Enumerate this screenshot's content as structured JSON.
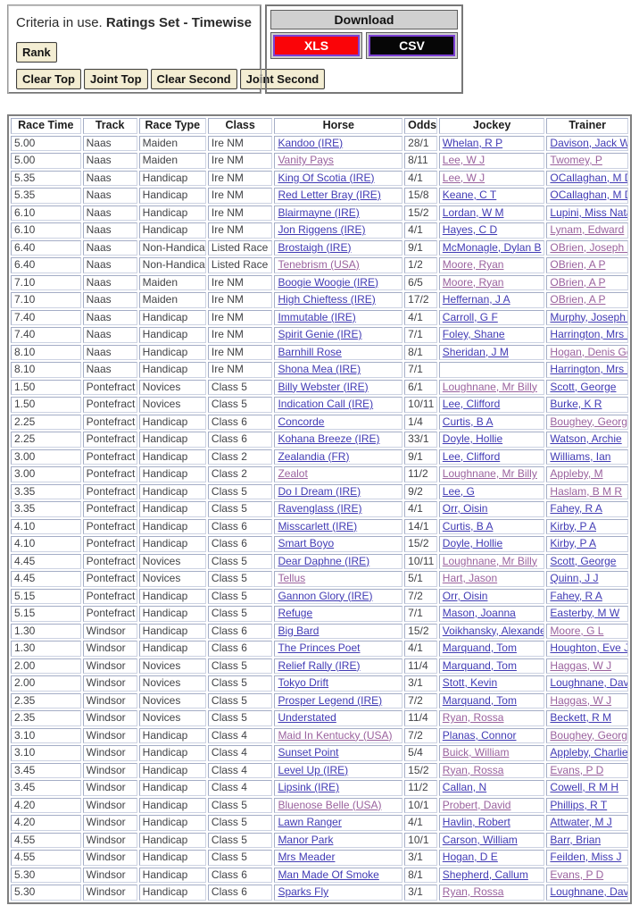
{
  "colors": {
    "link_blue": "#403ab4",
    "link_visited": "#9a629e",
    "xls_red": "#fa0408",
    "csv_black": "#060606",
    "download_button_border": "#7c3fd4",
    "criteria_button_bg": "#f3edd3",
    "download_header_bg": "#d0d0d0"
  },
  "criteria_panel": {
    "prefix": "Criteria in use. ",
    "highlight": "Ratings Set - Timewise",
    "rank_button": "Rank",
    "action_buttons": [
      "Clear Top",
      "Joint Top",
      "Clear Second",
      "Joint Second"
    ]
  },
  "download_panel": {
    "title": "Download",
    "xls_button": "XLS",
    "csv_button": "CSV"
  },
  "race_table": {
    "headers": [
      "Race Time",
      "Track",
      "Race Type",
      "Class",
      "Horse",
      "Odds",
      "Jockey",
      "Trainer"
    ],
    "rows": [
      {
        "time": "5.00",
        "track": "Naas",
        "race_type": "Maiden",
        "race_class": "Ire NM",
        "horse": "Kandoo (IRE)",
        "odds": "28/1",
        "jockey": "Whelan, R P",
        "trainer": "Davison, Jack W",
        "horse_visited": false,
        "jockey_visited": false,
        "trainer_visited": false
      },
      {
        "time": "5.00",
        "track": "Naas",
        "race_type": "Maiden",
        "race_class": "Ire NM",
        "horse": "Vanity Pays",
        "odds": "8/11",
        "jockey": "Lee, W J",
        "trainer": "Twomey, P",
        "horse_visited": true,
        "jockey_visited": true,
        "trainer_visited": true
      },
      {
        "time": "5.35",
        "track": "Naas",
        "race_type": "Handicap",
        "race_class": "Ire NM",
        "horse": "King Of Scotia (IRE)",
        "odds": "4/1",
        "jockey": "Lee, W J",
        "trainer": "OCallaghan, M D",
        "horse_visited": false,
        "jockey_visited": true,
        "trainer_visited": false
      },
      {
        "time": "5.35",
        "track": "Naas",
        "race_type": "Handicap",
        "race_class": "Ire NM",
        "horse": "Red Letter Bray (IRE)",
        "odds": "15/8",
        "jockey": "Keane, C T",
        "trainer": "OCallaghan, M D",
        "horse_visited": false,
        "jockey_visited": false,
        "trainer_visited": false
      },
      {
        "time": "6.10",
        "track": "Naas",
        "race_type": "Handicap",
        "race_class": "Ire NM",
        "horse": "Blairmayne (IRE)",
        "odds": "15/2",
        "jockey": "Lordan, W M",
        "trainer": "Lupini, Miss Natalia",
        "horse_visited": false,
        "jockey_visited": false,
        "trainer_visited": false
      },
      {
        "time": "6.10",
        "track": "Naas",
        "race_type": "Handicap",
        "race_class": "Ire NM",
        "horse": "Jon Riggens (IRE)",
        "odds": "4/1",
        "jockey": "Hayes, C D",
        "trainer": "Lynam, Edward",
        "horse_visited": false,
        "jockey_visited": false,
        "trainer_visited": true
      },
      {
        "time": "6.40",
        "track": "Naas",
        "race_type": "Non-Handicap",
        "race_class": "Listed Race",
        "horse": "Brostaigh (IRE)",
        "odds": "9/1",
        "jockey": "McMonagle, Dylan B",
        "trainer": "OBrien, Joseph Patrick",
        "horse_visited": false,
        "jockey_visited": false,
        "trainer_visited": true
      },
      {
        "time": "6.40",
        "track": "Naas",
        "race_type": "Non-Handicap",
        "race_class": "Listed Race",
        "horse": "Tenebrism (USA)",
        "odds": "1/2",
        "jockey": "Moore, Ryan",
        "trainer": "OBrien, A P",
        "horse_visited": true,
        "jockey_visited": true,
        "trainer_visited": true
      },
      {
        "time": "7.10",
        "track": "Naas",
        "race_type": "Maiden",
        "race_class": "Ire NM",
        "horse": "Boogie Woogie (IRE)",
        "odds": "6/5",
        "jockey": "Moore, Ryan",
        "trainer": "OBrien, A P",
        "horse_visited": false,
        "jockey_visited": true,
        "trainer_visited": true
      },
      {
        "time": "7.10",
        "track": "Naas",
        "race_type": "Maiden",
        "race_class": "Ire NM",
        "horse": "High Chieftess (IRE)",
        "odds": "17/2",
        "jockey": "Heffernan, J A",
        "trainer": "OBrien, A P",
        "horse_visited": false,
        "jockey_visited": false,
        "trainer_visited": true
      },
      {
        "time": "7.40",
        "track": "Naas",
        "race_type": "Handicap",
        "race_class": "Ire NM",
        "horse": "Immutable (IRE)",
        "odds": "4/1",
        "jockey": "Carroll, G F",
        "trainer": "Murphy, Joseph G",
        "horse_visited": false,
        "jockey_visited": false,
        "trainer_visited": false
      },
      {
        "time": "7.40",
        "track": "Naas",
        "race_type": "Handicap",
        "race_class": "Ire NM",
        "horse": "Spirit Genie (IRE)",
        "odds": "7/1",
        "jockey": "Foley, Shane",
        "trainer": "Harrington, Mrs John",
        "horse_visited": false,
        "jockey_visited": false,
        "trainer_visited": false
      },
      {
        "time": "8.10",
        "track": "Naas",
        "race_type": "Handicap",
        "race_class": "Ire NM",
        "horse": "Barnhill Rose",
        "odds": "8/1",
        "jockey": "Sheridan, J M",
        "trainer": "Hogan, Denis Gerard",
        "horse_visited": false,
        "jockey_visited": false,
        "trainer_visited": true
      },
      {
        "time": "8.10",
        "track": "Naas",
        "race_type": "Handicap",
        "race_class": "Ire NM",
        "horse": "Shona Mea (IRE)",
        "odds": "7/1",
        "jockey": "",
        "trainer": "Harrington, Mrs John",
        "horse_visited": false,
        "jockey_visited": false,
        "trainer_visited": false
      },
      {
        "time": "1.50",
        "track": "Pontefract",
        "race_type": "Novices",
        "race_class": "Class 5",
        "horse": "Billy Webster (IRE)",
        "odds": "6/1",
        "jockey": "Loughnane, Mr Billy",
        "trainer": "Scott, George",
        "horse_visited": false,
        "jockey_visited": true,
        "trainer_visited": false
      },
      {
        "time": "1.50",
        "track": "Pontefract",
        "race_type": "Novices",
        "race_class": "Class 5",
        "horse": "Indication Call (IRE)",
        "odds": "10/11",
        "jockey": "Lee, Clifford",
        "trainer": "Burke, K R",
        "horse_visited": false,
        "jockey_visited": false,
        "trainer_visited": false
      },
      {
        "time": "2.25",
        "track": "Pontefract",
        "race_type": "Handicap",
        "race_class": "Class 6",
        "horse": "Concorde",
        "odds": "1/4",
        "jockey": "Curtis, B A",
        "trainer": "Boughey, George",
        "horse_visited": false,
        "jockey_visited": false,
        "trainer_visited": true
      },
      {
        "time": "2.25",
        "track": "Pontefract",
        "race_type": "Handicap",
        "race_class": "Class 6",
        "horse": "Kohana Breeze (IRE)",
        "odds": "33/1",
        "jockey": "Doyle, Hollie",
        "trainer": "Watson, Archie",
        "horse_visited": false,
        "jockey_visited": false,
        "trainer_visited": false
      },
      {
        "time": "3.00",
        "track": "Pontefract",
        "race_type": "Handicap",
        "race_class": "Class 2",
        "horse": "Zealandia (FR)",
        "odds": "9/1",
        "jockey": "Lee, Clifford",
        "trainer": "Williams, Ian",
        "horse_visited": false,
        "jockey_visited": false,
        "trainer_visited": false
      },
      {
        "time": "3.00",
        "track": "Pontefract",
        "race_type": "Handicap",
        "race_class": "Class 2",
        "horse": "Zealot",
        "odds": "11/2",
        "jockey": "Loughnane, Mr Billy",
        "trainer": "Appleby, M",
        "horse_visited": true,
        "jockey_visited": true,
        "trainer_visited": true
      },
      {
        "time": "3.35",
        "track": "Pontefract",
        "race_type": "Handicap",
        "race_class": "Class 5",
        "horse": "Do I Dream (IRE)",
        "odds": "9/2",
        "jockey": "Lee, G",
        "trainer": "Haslam, B M R",
        "horse_visited": false,
        "jockey_visited": false,
        "trainer_visited": true
      },
      {
        "time": "3.35",
        "track": "Pontefract",
        "race_type": "Handicap",
        "race_class": "Class 5",
        "horse": "Ravenglass (IRE)",
        "odds": "4/1",
        "jockey": "Orr, Oisin",
        "trainer": "Fahey, R A",
        "horse_visited": false,
        "jockey_visited": false,
        "trainer_visited": false
      },
      {
        "time": "4.10",
        "track": "Pontefract",
        "race_type": "Handicap",
        "race_class": "Class 6",
        "horse": "Misscarlett (IRE)",
        "odds": "14/1",
        "jockey": "Curtis, B A",
        "trainer": "Kirby, P A",
        "horse_visited": false,
        "jockey_visited": false,
        "trainer_visited": false
      },
      {
        "time": "4.10",
        "track": "Pontefract",
        "race_type": "Handicap",
        "race_class": "Class 6",
        "horse": "Smart Boyo",
        "odds": "15/2",
        "jockey": "Doyle, Hollie",
        "trainer": "Kirby, P A",
        "horse_visited": false,
        "jockey_visited": false,
        "trainer_visited": false
      },
      {
        "time": "4.45",
        "track": "Pontefract",
        "race_type": "Novices",
        "race_class": "Class 5",
        "horse": "Dear Daphne (IRE)",
        "odds": "10/11",
        "jockey": "Loughnane, Mr Billy",
        "trainer": "Scott, George",
        "horse_visited": false,
        "jockey_visited": true,
        "trainer_visited": false
      },
      {
        "time": "4.45",
        "track": "Pontefract",
        "race_type": "Novices",
        "race_class": "Class 5",
        "horse": "Tellus",
        "odds": "5/1",
        "jockey": "Hart, Jason",
        "trainer": "Quinn, J J",
        "horse_visited": true,
        "jockey_visited": true,
        "trainer_visited": false
      },
      {
        "time": "5.15",
        "track": "Pontefract",
        "race_type": "Handicap",
        "race_class": "Class 5",
        "horse": "Gannon Glory (IRE)",
        "odds": "7/2",
        "jockey": "Orr, Oisin",
        "trainer": "Fahey, R A",
        "horse_visited": false,
        "jockey_visited": false,
        "trainer_visited": false
      },
      {
        "time": "5.15",
        "track": "Pontefract",
        "race_type": "Handicap",
        "race_class": "Class 5",
        "horse": "Refuge",
        "odds": "7/1",
        "jockey": "Mason, Joanna",
        "trainer": "Easterby, M W",
        "horse_visited": false,
        "jockey_visited": false,
        "trainer_visited": false
      },
      {
        "time": "1.30",
        "track": "Windsor",
        "race_type": "Handicap",
        "race_class": "Class 6",
        "horse": "Big Bard",
        "odds": "15/2",
        "jockey": "Voikhansky, Alexander",
        "trainer": "Moore, G L",
        "horse_visited": false,
        "jockey_visited": false,
        "trainer_visited": true
      },
      {
        "time": "1.30",
        "track": "Windsor",
        "race_type": "Handicap",
        "race_class": "Class 6",
        "horse": "The Princes Poet",
        "odds": "4/1",
        "jockey": "Marquand, Tom",
        "trainer": "Houghton, Eve Johnson",
        "horse_visited": false,
        "jockey_visited": false,
        "trainer_visited": false
      },
      {
        "time": "2.00",
        "track": "Windsor",
        "race_type": "Novices",
        "race_class": "Class 5",
        "horse": "Relief Rally (IRE)",
        "odds": "11/4",
        "jockey": "Marquand, Tom",
        "trainer": "Haggas, W J",
        "horse_visited": false,
        "jockey_visited": false,
        "trainer_visited": true
      },
      {
        "time": "2.00",
        "track": "Windsor",
        "race_type": "Novices",
        "race_class": "Class 5",
        "horse": "Tokyo Drift",
        "odds": "3/1",
        "jockey": "Stott, Kevin",
        "trainer": "Loughnane, David",
        "horse_visited": false,
        "jockey_visited": false,
        "trainer_visited": false
      },
      {
        "time": "2.35",
        "track": "Windsor",
        "race_type": "Novices",
        "race_class": "Class 5",
        "horse": "Prosper Legend (IRE)",
        "odds": "7/2",
        "jockey": "Marquand, Tom",
        "trainer": "Haggas, W J",
        "horse_visited": false,
        "jockey_visited": false,
        "trainer_visited": true
      },
      {
        "time": "2.35",
        "track": "Windsor",
        "race_type": "Novices",
        "race_class": "Class 5",
        "horse": "Understated",
        "odds": "11/4",
        "jockey": "Ryan, Rossa",
        "trainer": "Beckett, R M",
        "horse_visited": false,
        "jockey_visited": true,
        "trainer_visited": false
      },
      {
        "time": "3.10",
        "track": "Windsor",
        "race_type": "Handicap",
        "race_class": "Class 4",
        "horse": "Maid In Kentucky (USA)",
        "odds": "7/2",
        "jockey": "Planas, Connor",
        "trainer": "Boughey, George",
        "horse_visited": true,
        "jockey_visited": false,
        "trainer_visited": true
      },
      {
        "time": "3.10",
        "track": "Windsor",
        "race_type": "Handicap",
        "race_class": "Class 4",
        "horse": "Sunset Point",
        "odds": "5/4",
        "jockey": "Buick, William",
        "trainer": "Appleby, Charlie",
        "horse_visited": false,
        "jockey_visited": true,
        "trainer_visited": false
      },
      {
        "time": "3.45",
        "track": "Windsor",
        "race_type": "Handicap",
        "race_class": "Class 4",
        "horse": "Level Up (IRE)",
        "odds": "15/2",
        "jockey": "Ryan, Rossa",
        "trainer": "Evans, P D",
        "horse_visited": false,
        "jockey_visited": true,
        "trainer_visited": true
      },
      {
        "time": "3.45",
        "track": "Windsor",
        "race_type": "Handicap",
        "race_class": "Class 4",
        "horse": "Lipsink (IRE)",
        "odds": "11/2",
        "jockey": "Callan, N",
        "trainer": "Cowell, R M H",
        "horse_visited": false,
        "jockey_visited": false,
        "trainer_visited": false
      },
      {
        "time": "4.20",
        "track": "Windsor",
        "race_type": "Handicap",
        "race_class": "Class 5",
        "horse": "Bluenose Belle (USA)",
        "odds": "10/1",
        "jockey": "Probert, David",
        "trainer": "Phillips, R T",
        "horse_visited": true,
        "jockey_visited": true,
        "trainer_visited": false
      },
      {
        "time": "4.20",
        "track": "Windsor",
        "race_type": "Handicap",
        "race_class": "Class 5",
        "horse": "Lawn Ranger",
        "odds": "4/1",
        "jockey": "Havlin, Robert",
        "trainer": "Attwater, M J",
        "horse_visited": false,
        "jockey_visited": false,
        "trainer_visited": false
      },
      {
        "time": "4.55",
        "track": "Windsor",
        "race_type": "Handicap",
        "race_class": "Class 5",
        "horse": "Manor Park",
        "odds": "10/1",
        "jockey": "Carson, William",
        "trainer": "Barr, Brian",
        "horse_visited": false,
        "jockey_visited": false,
        "trainer_visited": false
      },
      {
        "time": "4.55",
        "track": "Windsor",
        "race_type": "Handicap",
        "race_class": "Class 5",
        "horse": "Mrs Meader",
        "odds": "3/1",
        "jockey": "Hogan, D E",
        "trainer": "Feilden, Miss J",
        "horse_visited": false,
        "jockey_visited": false,
        "trainer_visited": false
      },
      {
        "time": "5.30",
        "track": "Windsor",
        "race_type": "Handicap",
        "race_class": "Class 6",
        "horse": "Man Made Of Smoke",
        "odds": "8/1",
        "jockey": "Shepherd, Callum",
        "trainer": "Evans, P D",
        "horse_visited": false,
        "jockey_visited": false,
        "trainer_visited": true
      },
      {
        "time": "5.30",
        "track": "Windsor",
        "race_type": "Handicap",
        "race_class": "Class 6",
        "horse": "Sparks Fly",
        "odds": "3/1",
        "jockey": "Ryan, Rossa",
        "trainer": "Loughnane, David",
        "horse_visited": false,
        "jockey_visited": true,
        "trainer_visited": false
      }
    ]
  }
}
